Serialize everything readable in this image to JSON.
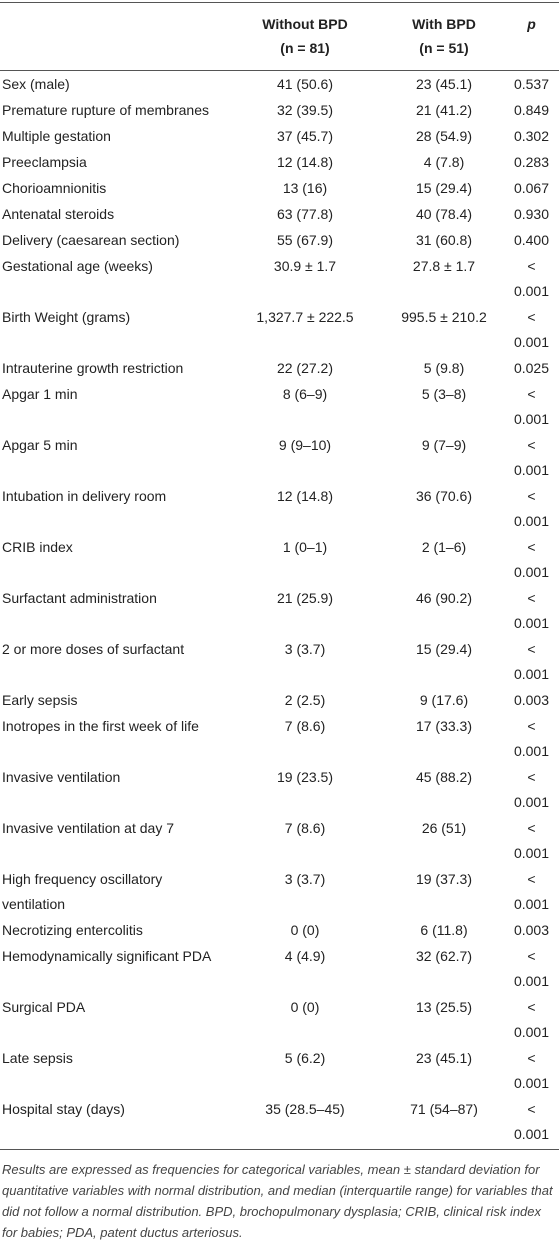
{
  "table": {
    "columns": [
      {
        "title": "",
        "n": ""
      },
      {
        "title": "Without BPD",
        "n": "(n = 81)"
      },
      {
        "title": "With BPD",
        "n": "(n = 51)"
      },
      {
        "title": "p",
        "n": ""
      }
    ],
    "rows": [
      [
        "Sex (male)",
        "41 (50.6)",
        "23 (45.1)",
        "0.537"
      ],
      [
        "Premature rupture of membranes",
        "32 (39.5)",
        "21 (41.2)",
        "0.849"
      ],
      [
        "Multiple gestation",
        "37 (45.7)",
        "28 (54.9)",
        "0.302"
      ],
      [
        "Preeclampsia",
        "12 (14.8)",
        "4 (7.8)",
        "0.283"
      ],
      [
        "Chorioamnionitis",
        "13 (16)",
        "15 (29.4)",
        "0.067"
      ],
      [
        "Antenatal steroids",
        "63 (77.8)",
        "40 (78.4)",
        "0.930"
      ],
      [
        "Delivery (caesarean section)",
        "55 (67.9)",
        "31 (60.8)",
        "0.400"
      ],
      [
        "Gestational age (weeks)",
        "30.9 ± 1.7",
        "27.8 ± 1.7",
        "< 0.001"
      ],
      [
        "Birth Weight (grams)",
        "1,327.7 ± 222.5",
        "995.5 ± 210.2",
        "< 0.001"
      ],
      [
        "Intrauterine growth restriction",
        "22 (27.2)",
        "5 (9.8)",
        "0.025"
      ],
      [
        "Apgar 1 min",
        "8 (6–9)",
        "5 (3–8)",
        "< 0.001"
      ],
      [
        "Apgar 5 min",
        "9 (9–10)",
        "9 (7–9)",
        "< 0.001"
      ],
      [
        "Intubation in delivery room",
        "12 (14.8)",
        "36 (70.6)",
        "< 0.001"
      ],
      [
        "CRIB index",
        "1 (0–1)",
        "2 (1–6)",
        "< 0.001"
      ],
      [
        "Surfactant administration",
        "21 (25.9)",
        "46 (90.2)",
        "< 0.001"
      ],
      [
        "2 or more doses of surfactant",
        "3 (3.7)",
        "15 (29.4)",
        "< 0.001"
      ],
      [
        "Early sepsis",
        "2 (2.5)",
        "9 (17.6)",
        "0.003"
      ],
      [
        "Inotropes in the first week of life",
        "7 (8.6)",
        "17 (33.3)",
        "< 0.001"
      ],
      [
        "Invasive ventilation",
        "19 (23.5)",
        "45 (88.2)",
        "< 0.001"
      ],
      [
        "Invasive ventilation at day 7",
        "7 (8.6)",
        "26 (51)",
        "< 0.001"
      ],
      [
        "High frequency oscillatory ventilation",
        "3 (3.7)",
        "19 (37.3)",
        "< 0.001"
      ],
      [
        "Necrotizing entercolitis",
        "0 (0)",
        "6 (11.8)",
        "0.003"
      ],
      [
        "Hemodynamically significant PDA",
        "4 (4.9)",
        "32 (62.7)",
        "< 0.001"
      ],
      [
        "Surgical PDA",
        "0 (0)",
        "13 (25.5)",
        "< 0.001"
      ],
      [
        "Late sepsis",
        "5 (6.2)",
        "23 (45.1)",
        "< 0.001"
      ],
      [
        "Hospital stay (days)",
        "35 (28.5–45)",
        "71 (54–87)",
        "< 0.001"
      ]
    ],
    "footnote": "Results are expressed as frequencies for categorical variables, mean ± standard deviation for quantitative variables with normal distribution, and median (interquartile range) for variables that did not follow a normal distribution. BPD, brochopulmonary dysplasia; CRIB, clinical risk index for babies; PDA, patent ductus arteriosus."
  }
}
